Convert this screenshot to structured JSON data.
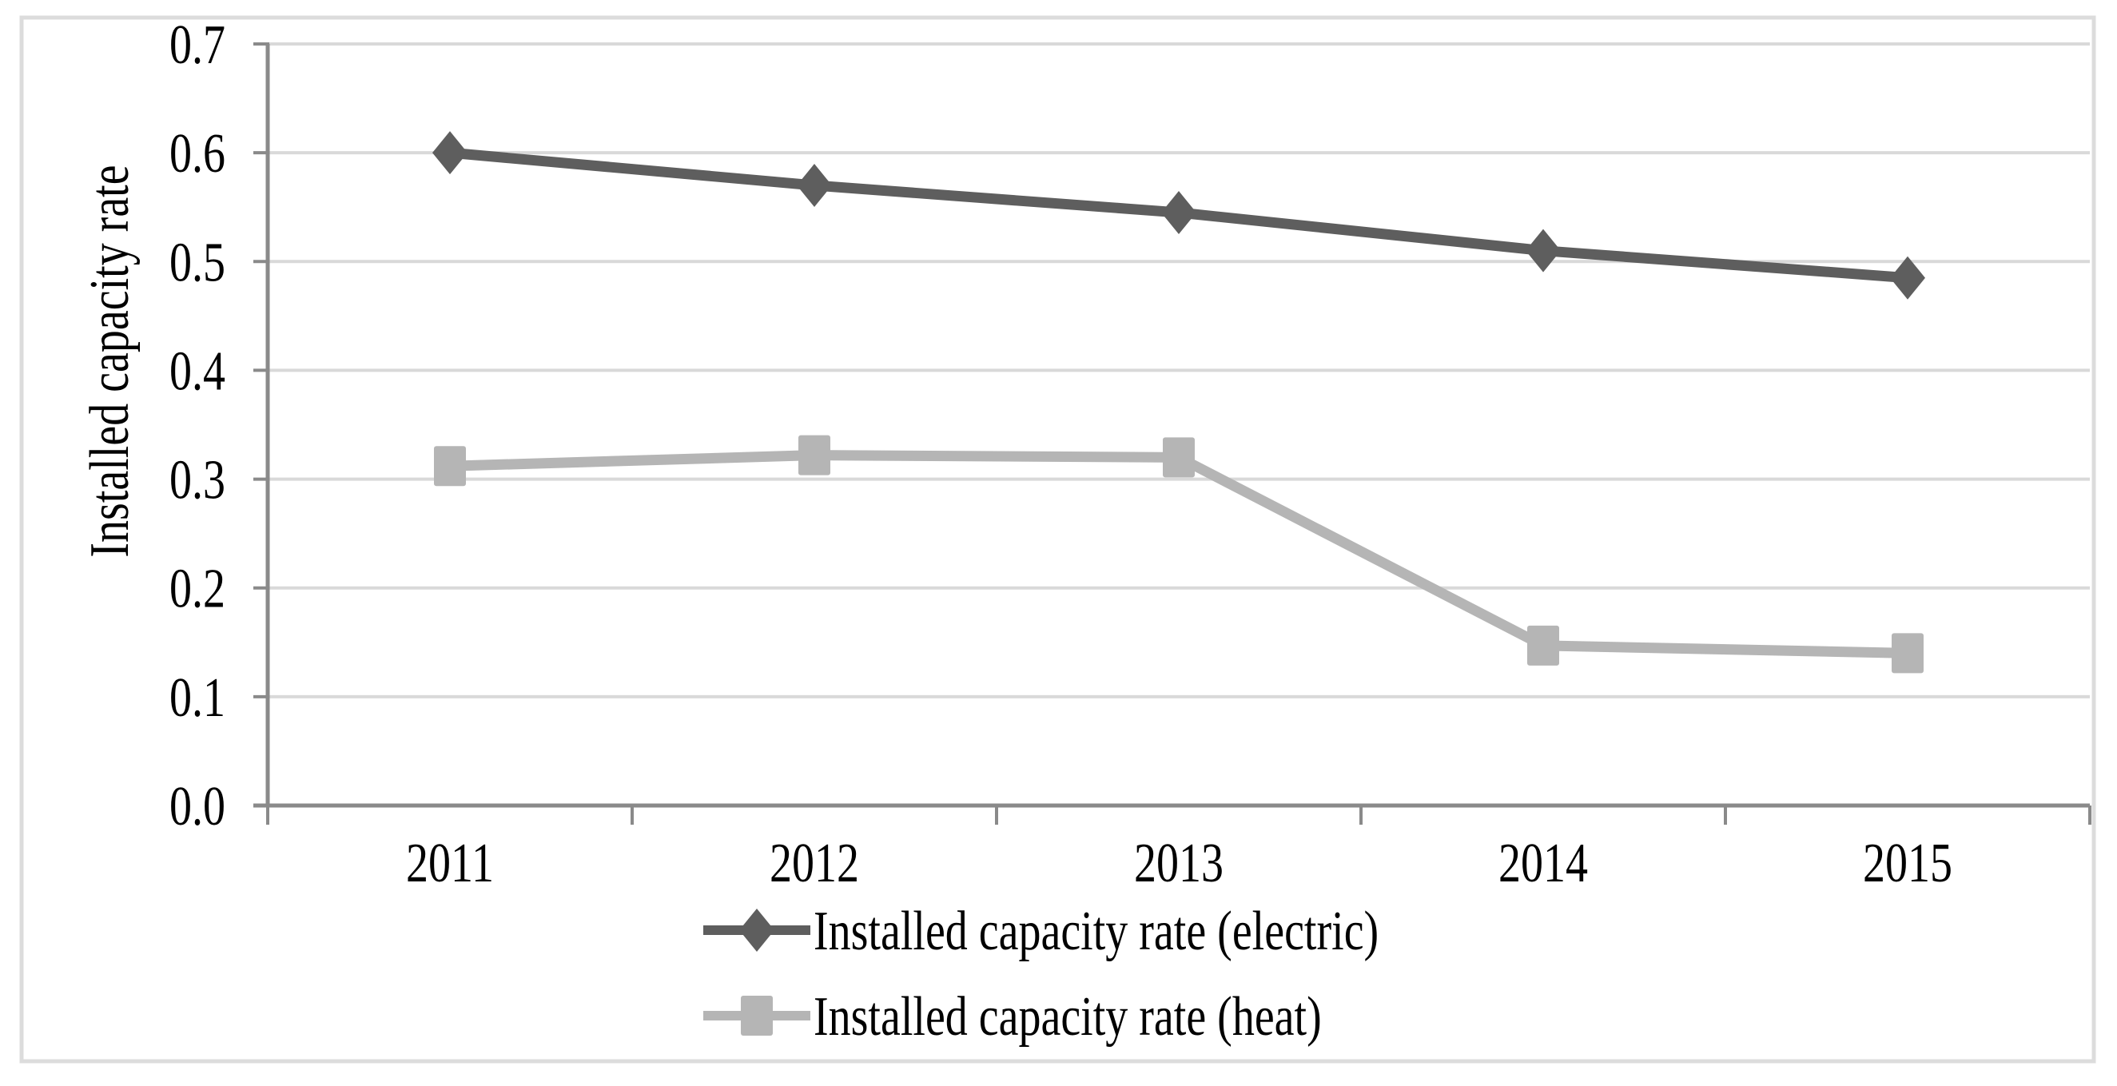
{
  "figure": {
    "background": "#ffffff",
    "frame_border_color": "#dcdcdc"
  },
  "chart_data": {
    "type": "line",
    "title": "",
    "xlabel": "",
    "ylabel": "Installed capacity rate",
    "categories": [
      "2011",
      "2012",
      "2013",
      "2014",
      "2015"
    ],
    "series": [
      {
        "name": "Installed capacity rate (electric)",
        "marker": "diamond",
        "color": "#5e5e5e",
        "values": [
          0.6,
          0.57,
          0.545,
          0.51,
          0.485
        ]
      },
      {
        "name": "Installed capacity rate (heat)",
        "marker": "square",
        "color": "#b5b5b5",
        "values": [
          0.312,
          0.322,
          0.32,
          0.147,
          0.14
        ]
      }
    ],
    "ylim": [
      0.0,
      0.7
    ],
    "y_tick_step": 0.1,
    "y_tick_labels": [
      "0.0",
      "0.1",
      "0.2",
      "0.3",
      "0.4",
      "0.5",
      "0.6",
      "0.7"
    ],
    "grid": "horizontal-only",
    "gridline_color": "#d9d9d9",
    "axis_color": "#8a8a8a",
    "legend_position": "bottom-left-stacked"
  }
}
